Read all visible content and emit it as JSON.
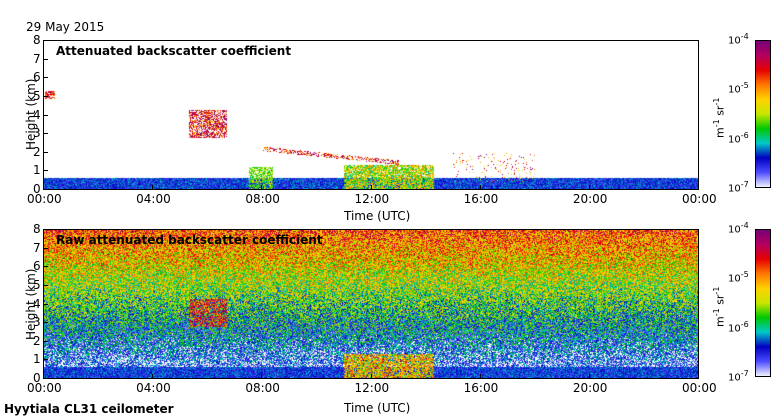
{
  "date": "29 May 2015",
  "footer": "Hyytiala CL31 ceilometer",
  "colorbar": {
    "ticks": [
      "10-4",
      "10-5",
      "10-6",
      "10-7"
    ],
    "unit": "m-1 sr-1",
    "colors": [
      "#f2f2ff",
      "#4b4bff",
      "#0000c0",
      "#00c8c8",
      "#00c800",
      "#c8e600",
      "#ffd200",
      "#ff7800",
      "#e60000",
      "#b40060",
      "#780078"
    ]
  },
  "chart_data": [
    {
      "type": "heatmap",
      "title": "Attenuated backscatter coefficient",
      "xlabel": "Time (UTC)",
      "ylabel": "Height (km)",
      "xticks": [
        "00:00",
        "04:00",
        "08:00",
        "12:00",
        "16:00",
        "20:00",
        "00:00"
      ],
      "yticks": [
        "0",
        "1",
        "2",
        "3",
        "4",
        "5",
        "6",
        "7",
        "8"
      ],
      "xlim_hours": [
        0,
        24
      ],
      "ylim_km": [
        0,
        8
      ],
      "features": [
        {
          "desc": "surface layer",
          "time_h": [
            0,
            24
          ],
          "height_km": [
            0,
            0.6
          ]
        },
        {
          "desc": "cloud layer",
          "time_h": [
            5.2,
            6.7
          ],
          "height_km": [
            2.7,
            4.3
          ]
        },
        {
          "desc": "cloud/precip band",
          "time_h": [
            11,
            14.3
          ],
          "height_km": [
            0,
            1.3
          ]
        },
        {
          "desc": "elevated layer",
          "time_h": [
            7.8,
            13
          ],
          "height_km": [
            1.3,
            2.2
          ]
        }
      ]
    },
    {
      "type": "heatmap",
      "title": "Raw attenuated backscatter coefficient",
      "xlabel": "Time (UTC)",
      "ylabel": "Height (km)",
      "xticks": [
        "00:00",
        "04:00",
        "08:00",
        "12:00",
        "16:00",
        "20:00",
        "00:00"
      ],
      "yticks": [
        "0",
        "1",
        "2",
        "3",
        "4",
        "5",
        "6",
        "7",
        "8"
      ],
      "xlim_hours": [
        0,
        24
      ],
      "ylim_km": [
        0,
        8
      ]
    }
  ]
}
